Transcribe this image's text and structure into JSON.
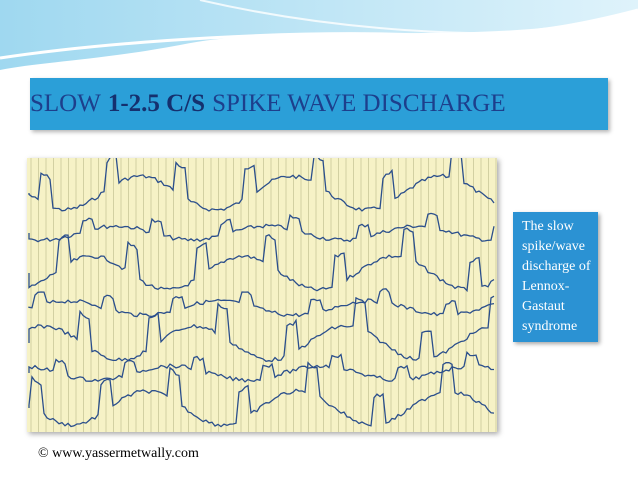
{
  "title": {
    "parts": [
      "SLOW",
      "1-2.5 C/S",
      "SPIKE WAVE DISCHARGE"
    ]
  },
  "caption": {
    "lines": [
      "The slow",
      "spike/wave",
      "discharge of",
      "Lennox-",
      "Gastaut",
      "syndrome"
    ]
  },
  "footer": "© www.yassermetwally.com"
}
